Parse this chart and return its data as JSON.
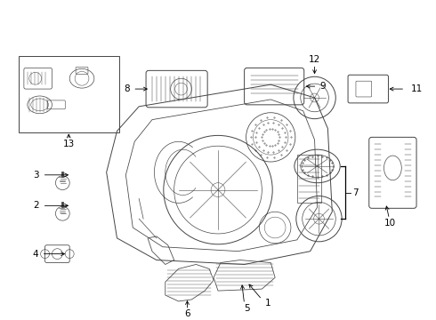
{
  "background_color": "#ffffff",
  "fig_width": 4.9,
  "fig_height": 3.6,
  "dpi": 100,
  "gray": "#444444",
  "black": "#000000",
  "label_fs": 7.5
}
